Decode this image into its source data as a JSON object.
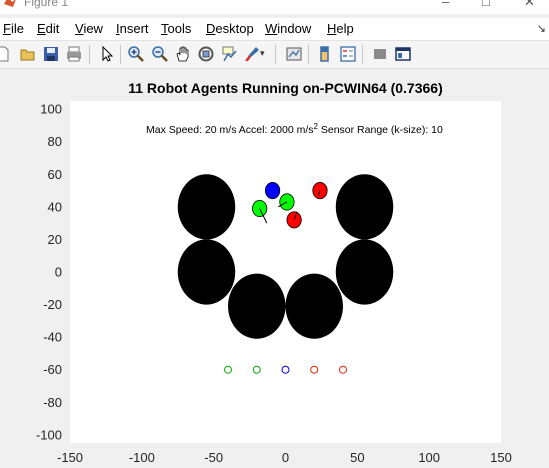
{
  "window": {
    "title": "Figure 1",
    "controls": {
      "minimize": "–",
      "maximize": "□",
      "close": "✕"
    }
  },
  "menu": {
    "items": [
      "File",
      "Edit",
      "View",
      "Insert",
      "Tools",
      "Desktop",
      "Window",
      "Help"
    ],
    "overflow_glyph": "↘"
  },
  "toolbar": {
    "buttons": [
      {
        "name": "new-figure-icon"
      },
      {
        "name": "open-file-icon"
      },
      {
        "name": "save-figure-icon"
      },
      {
        "name": "print-figure-icon"
      },
      {
        "name": "edit-plot-arrow-icon"
      },
      {
        "name": "zoom-in-icon"
      },
      {
        "name": "zoom-out-icon"
      },
      {
        "name": "pan-hand-icon"
      },
      {
        "name": "rotate-3d-icon"
      },
      {
        "name": "data-cursor-icon"
      },
      {
        "name": "brush-icon"
      },
      {
        "name": "link-plot-icon"
      },
      {
        "name": "insert-colorbar-icon"
      },
      {
        "name": "insert-legend-icon"
      },
      {
        "name": "hide-plot-tools-icon"
      },
      {
        "name": "show-plot-tools-icon"
      }
    ]
  },
  "colors": {
    "figure_bg": "#f0f0f0",
    "axes_bg": "#ffffff",
    "obstacle": "#000000",
    "green": "#00ff00",
    "blue": "#0000ff",
    "red": "#ff0000",
    "marker_green": "#00aa00",
    "marker_blue": "#0000cc",
    "marker_red": "#dd2200"
  },
  "chart_data": {
    "type": "scatter",
    "title": "11 Robot Agents Running on-PCWIN64 (0.7366)",
    "annotation": {
      "prefix": "Max Speed: 20 m/s Accel: 2000 m/s",
      "superscript": "2",
      "suffix": " Sensor Range (k-size): 10"
    },
    "xlim": [
      -150,
      150
    ],
    "ylim": [
      -105,
      105
    ],
    "xticks": [
      -150,
      -100,
      -50,
      0,
      50,
      100,
      150
    ],
    "yticks": [
      100,
      80,
      60,
      40,
      20,
      0,
      -20,
      -40,
      -60,
      -80,
      -100
    ],
    "grid": false,
    "obstacles": [
      {
        "x": -55,
        "y": 40,
        "rx": 20,
        "ry": 20
      },
      {
        "x": 55,
        "y": 40,
        "rx": 20,
        "ry": 20
      },
      {
        "x": -55,
        "y": 0,
        "rx": 20,
        "ry": 20
      },
      {
        "x": 55,
        "y": 0,
        "rx": 20,
        "ry": 20
      },
      {
        "x": -20,
        "y": -21,
        "rx": 20,
        "ry": 20
      },
      {
        "x": 20,
        "y": -21,
        "rx": 20,
        "ry": 20
      }
    ],
    "agents": [
      {
        "x": -9,
        "y": 50,
        "r": 5,
        "color": "blue",
        "hx": -9,
        "hy": 50
      },
      {
        "x": 24,
        "y": 50,
        "r": 5,
        "color": "red",
        "hx": 23,
        "hy": 47
      },
      {
        "x": 1,
        "y": 43,
        "r": 5,
        "color": "green",
        "hx": -5,
        "hy": 40
      },
      {
        "x": -18,
        "y": 39,
        "r": 5,
        "color": "green",
        "hx": -13,
        "hy": 30
      },
      {
        "x": 6,
        "y": 32,
        "r": 5,
        "color": "red",
        "hx": 8,
        "hy": 37
      }
    ],
    "targets": [
      {
        "x": -40,
        "y": -60,
        "color": "marker_green"
      },
      {
        "x": -20,
        "y": -60,
        "color": "marker_green"
      },
      {
        "x": 0,
        "y": -60,
        "color": "marker_blue"
      },
      {
        "x": 20,
        "y": -60,
        "color": "marker_red"
      },
      {
        "x": 40,
        "y": -60,
        "color": "marker_red"
      }
    ]
  }
}
